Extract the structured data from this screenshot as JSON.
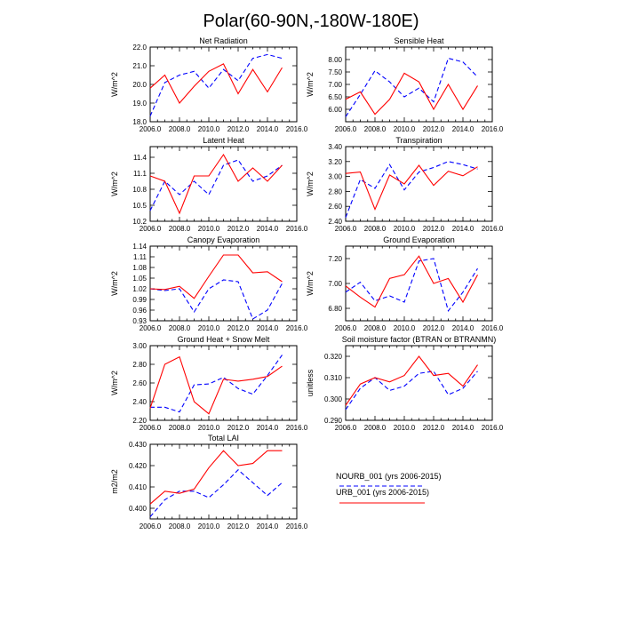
{
  "figure": {
    "title": "Polar(60-90N,-180W-180E)",
    "legend": [
      {
        "label": "NOURB_001 (yrs 2006-2015)",
        "color": "#0000ff",
        "dash": true
      },
      {
        "label": "URB_001 (yrs 2006-2015)",
        "color": "#ff0000",
        "dash": false
      }
    ]
  },
  "chart_data": [
    {
      "type": "line",
      "title": "Net Radiation",
      "ylabel": "W/m^2",
      "xlim": [
        2006,
        2016
      ],
      "ylim": [
        18.0,
        22.0
      ],
      "xticks": [
        "2006.0",
        "2008.0",
        "2010.0",
        "2012.0",
        "2014.0",
        "2016.0"
      ],
      "yticks": [
        {
          "v": 18.0,
          "t": "18.0"
        },
        {
          "v": 19.0,
          "t": "19.0"
        },
        {
          "v": 20.0,
          "t": "20.0"
        },
        {
          "v": 21.0,
          "t": "21.0"
        },
        {
          "v": 22.0,
          "t": "22.0"
        }
      ],
      "x": [
        2006,
        2007,
        2008,
        2009,
        2010,
        2011,
        2012,
        2013,
        2014,
        2015
      ],
      "series": [
        {
          "name": "NOURB_001",
          "values": [
            18.3,
            20.1,
            20.5,
            20.7,
            19.8,
            20.8,
            20.2,
            21.4,
            21.6,
            21.4
          ]
        },
        {
          "name": "URB_001",
          "values": [
            19.8,
            20.5,
            19.0,
            19.9,
            20.7,
            21.1,
            19.5,
            20.8,
            19.6,
            20.9
          ]
        }
      ]
    },
    {
      "type": "line",
      "title": "Sensible Heat",
      "ylabel": "W/m^2",
      "xlim": [
        2006,
        2016
      ],
      "ylim": [
        5.5,
        8.5
      ],
      "xticks": [
        "2006.0",
        "2008.0",
        "2010.0",
        "2012.0",
        "2014.0",
        "2016.0"
      ],
      "yticks": [
        {
          "v": 6.0,
          "t": "6.00"
        },
        {
          "v": 6.5,
          "t": "6.50"
        },
        {
          "v": 7.0,
          "t": "7.00"
        },
        {
          "v": 7.5,
          "t": "7.50"
        },
        {
          "v": 8.0,
          "t": "8.00"
        }
      ],
      "x": [
        2006,
        2007,
        2008,
        2009,
        2010,
        2011,
        2012,
        2013,
        2014,
        2015
      ],
      "series": [
        {
          "name": "NOURB_001",
          "values": [
            5.7,
            6.6,
            7.55,
            7.1,
            6.5,
            6.85,
            6.3,
            8.05,
            7.9,
            7.3
          ]
        },
        {
          "name": "URB_001",
          "values": [
            6.4,
            6.7,
            5.8,
            6.4,
            7.45,
            7.1,
            6.0,
            7.0,
            6.0,
            6.95
          ]
        }
      ]
    },
    {
      "type": "line",
      "title": "Latent Heat",
      "ylabel": "W/m^2",
      "xlim": [
        2006,
        2016
      ],
      "ylim": [
        10.2,
        11.6
      ],
      "xticks": [
        "2006.0",
        "2008.0",
        "2010.0",
        "2012.0",
        "2014.0",
        "2016.0"
      ],
      "yticks": [
        {
          "v": 10.2,
          "t": "10.2"
        },
        {
          "v": 10.5,
          "t": "10.5"
        },
        {
          "v": 10.8,
          "t": "10.8"
        },
        {
          "v": 11.1,
          "t": "11.1"
        },
        {
          "v": 11.4,
          "t": "11.4"
        }
      ],
      "x": [
        2006,
        2007,
        2008,
        2009,
        2010,
        2011,
        2012,
        2013,
        2014,
        2015
      ],
      "series": [
        {
          "name": "NOURB_001",
          "values": [
            10.4,
            10.95,
            10.7,
            10.95,
            10.7,
            11.25,
            11.35,
            10.95,
            11.05,
            11.25
          ]
        },
        {
          "name": "URB_001",
          "values": [
            11.05,
            10.95,
            10.35,
            11.05,
            11.05,
            11.45,
            10.95,
            11.2,
            10.95,
            11.25
          ]
        }
      ]
    },
    {
      "type": "line",
      "title": "Transpiration",
      "ylabel": "W/m^2",
      "xlim": [
        2006,
        2016
      ],
      "ylim": [
        2.4,
        3.4
      ],
      "xticks": [
        "2006.0",
        "2008.0",
        "2010.0",
        "2012.0",
        "2014.0",
        "2016.0"
      ],
      "yticks": [
        {
          "v": 2.4,
          "t": "2.40"
        },
        {
          "v": 2.6,
          "t": "2.60"
        },
        {
          "v": 2.8,
          "t": "2.80"
        },
        {
          "v": 3.0,
          "t": "3.00"
        },
        {
          "v": 3.2,
          "t": "3.20"
        },
        {
          "v": 3.4,
          "t": "3.40"
        }
      ],
      "x": [
        2006,
        2007,
        2008,
        2009,
        2010,
        2011,
        2012,
        2013,
        2014,
        2015
      ],
      "series": [
        {
          "name": "NOURB_001",
          "values": [
            2.45,
            2.96,
            2.84,
            3.16,
            2.82,
            3.06,
            3.12,
            3.2,
            3.16,
            3.1
          ]
        },
        {
          "name": "URB_001",
          "values": [
            3.04,
            3.06,
            2.56,
            3.02,
            2.9,
            3.15,
            2.88,
            3.07,
            3.01,
            3.13
          ]
        }
      ]
    },
    {
      "type": "line",
      "title": "Canopy Evaporation",
      "ylabel": "W/m^2",
      "xlim": [
        2006,
        2016
      ],
      "ylim": [
        0.93,
        1.14
      ],
      "xticks": [
        "2006.0",
        "2008.0",
        "2010.0",
        "2012.0",
        "2014.0",
        "2016.0"
      ],
      "yticks": [
        {
          "v": 0.93,
          "t": "0.93"
        },
        {
          "v": 0.96,
          "t": "0.96"
        },
        {
          "v": 0.99,
          "t": "0.99"
        },
        {
          "v": 1.02,
          "t": "1.02"
        },
        {
          "v": 1.05,
          "t": "1.05"
        },
        {
          "v": 1.08,
          "t": "1.08"
        },
        {
          "v": 1.11,
          "t": "1.11"
        },
        {
          "v": 1.14,
          "t": "1.14"
        }
      ],
      "x": [
        2006,
        2007,
        2008,
        2009,
        2010,
        2011,
        2012,
        2013,
        2014,
        2015
      ],
      "series": [
        {
          "name": "NOURB_001",
          "values": [
            1.02,
            1.015,
            1.02,
            0.955,
            1.02,
            1.045,
            1.04,
            0.935,
            0.96,
            1.035
          ]
        },
        {
          "name": "URB_001",
          "values": [
            1.02,
            1.018,
            1.027,
            0.993,
            1.055,
            1.115,
            1.115,
            1.065,
            1.068,
            1.04
          ]
        }
      ]
    },
    {
      "type": "line",
      "title": "Ground Evaporation",
      "ylabel": "W/m^2",
      "xlim": [
        2006,
        2016
      ],
      "ylim": [
        6.7,
        7.3
      ],
      "xticks": [
        "2006.0",
        "2008.0",
        "2010.0",
        "2012.0",
        "2014.0",
        "2016.0"
      ],
      "yticks": [
        {
          "v": 6.8,
          "t": "6.80"
        },
        {
          "v": 7.0,
          "t": "7.00"
        },
        {
          "v": 7.2,
          "t": "7.20"
        }
      ],
      "x": [
        2006,
        2007,
        2008,
        2009,
        2010,
        2011,
        2012,
        2013,
        2014,
        2015
      ],
      "series": [
        {
          "name": "NOURB_001",
          "values": [
            6.93,
            7.01,
            6.86,
            6.9,
            6.85,
            7.18,
            7.2,
            6.78,
            6.93,
            7.12
          ]
        },
        {
          "name": "URB_001",
          "values": [
            6.98,
            6.89,
            6.81,
            7.04,
            7.07,
            7.22,
            7.0,
            7.04,
            6.85,
            7.07
          ]
        }
      ]
    },
    {
      "type": "line",
      "title": "Ground Heat + Snow Melt",
      "ylabel": "W/m^2",
      "xlim": [
        2006,
        2016
      ],
      "ylim": [
        2.2,
        3.0
      ],
      "xticks": [
        "2006.0",
        "2008.0",
        "2010.0",
        "2012.0",
        "2014.0",
        "2016.0"
      ],
      "yticks": [
        {
          "v": 2.2,
          "t": "2.20"
        },
        {
          "v": 2.4,
          "t": "2.40"
        },
        {
          "v": 2.6,
          "t": "2.60"
        },
        {
          "v": 2.8,
          "t": "2.80"
        },
        {
          "v": 3.0,
          "t": "3.00"
        }
      ],
      "x": [
        2006,
        2007,
        2008,
        2009,
        2010,
        2011,
        2012,
        2013,
        2014,
        2015
      ],
      "series": [
        {
          "name": "NOURB_001",
          "values": [
            2.34,
            2.34,
            2.29,
            2.58,
            2.59,
            2.66,
            2.54,
            2.48,
            2.68,
            2.9
          ]
        },
        {
          "name": "URB_001",
          "values": [
            2.33,
            2.8,
            2.88,
            2.4,
            2.27,
            2.64,
            2.62,
            2.64,
            2.67,
            2.78
          ]
        }
      ]
    },
    {
      "type": "line",
      "title": "Soil moisture factor (BTRAN or BTRANMN)",
      "ylabel": "unitless",
      "xlim": [
        2006,
        2016
      ],
      "ylim": [
        0.29,
        0.325
      ],
      "xticks": [
        "2006.0",
        "2008.0",
        "2010.0",
        "2012.0",
        "2014.0",
        "2016.0"
      ],
      "yticks": [
        {
          "v": 0.29,
          "t": "0.290"
        },
        {
          "v": 0.3,
          "t": "0.300"
        },
        {
          "v": 0.31,
          "t": "0.310"
        },
        {
          "v": 0.32,
          "t": "0.320"
        }
      ],
      "x": [
        2006,
        2007,
        2008,
        2009,
        2010,
        2011,
        2012,
        2013,
        2014,
        2015
      ],
      "series": [
        {
          "name": "NOURB_001",
          "values": [
            0.295,
            0.305,
            0.31,
            0.304,
            0.306,
            0.312,
            0.313,
            0.302,
            0.305,
            0.313
          ]
        },
        {
          "name": "URB_001",
          "values": [
            0.297,
            0.307,
            0.31,
            0.308,
            0.311,
            0.32,
            0.311,
            0.312,
            0.306,
            0.316
          ]
        }
      ]
    },
    {
      "type": "line",
      "title": "Total LAI",
      "ylabel": "m2/m2",
      "xlim": [
        2006,
        2016
      ],
      "ylim": [
        0.395,
        0.43
      ],
      "xticks": [
        "2006.0",
        "2008.0",
        "2010.0",
        "2012.0",
        "2014.0",
        "2016.0"
      ],
      "yticks": [
        {
          "v": 0.4,
          "t": "0.400"
        },
        {
          "v": 0.41,
          "t": "0.410"
        },
        {
          "v": 0.42,
          "t": "0.420"
        },
        {
          "v": 0.43,
          "t": "0.430"
        }
      ],
      "x": [
        2006,
        2007,
        2008,
        2009,
        2010,
        2011,
        2012,
        2013,
        2014,
        2015
      ],
      "series": [
        {
          "name": "NOURB_001",
          "values": [
            0.396,
            0.404,
            0.408,
            0.408,
            0.405,
            0.411,
            0.418,
            0.412,
            0.406,
            0.412
          ]
        },
        {
          "name": "URB_001",
          "values": [
            0.402,
            0.408,
            0.407,
            0.409,
            0.419,
            0.427,
            0.42,
            0.421,
            0.427,
            0.427
          ]
        }
      ]
    }
  ]
}
